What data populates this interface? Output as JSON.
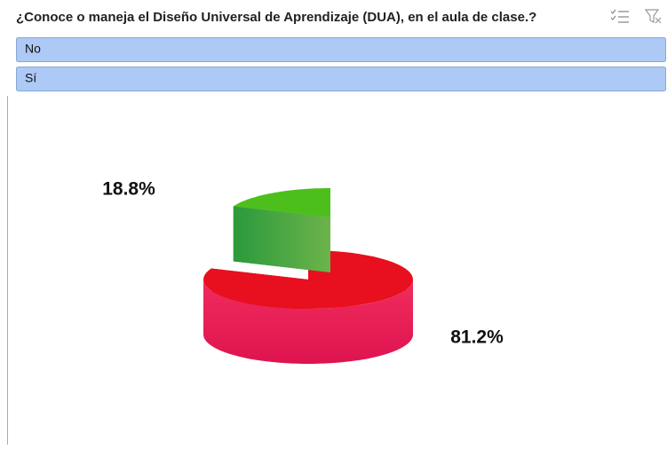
{
  "chart_data": {
    "type": "pie",
    "title": "¿Conoce o maneja el Diseño Universal de Aprendizaje (DUA), en el aula de clase.?",
    "categories": [
      "No",
      "Sí"
    ],
    "values": [
      18.8,
      81.2
    ],
    "value_labels": [
      "18.8%",
      "81.2%"
    ],
    "colors": [
      "#3aa82e",
      "#e8101e"
    ]
  }
}
